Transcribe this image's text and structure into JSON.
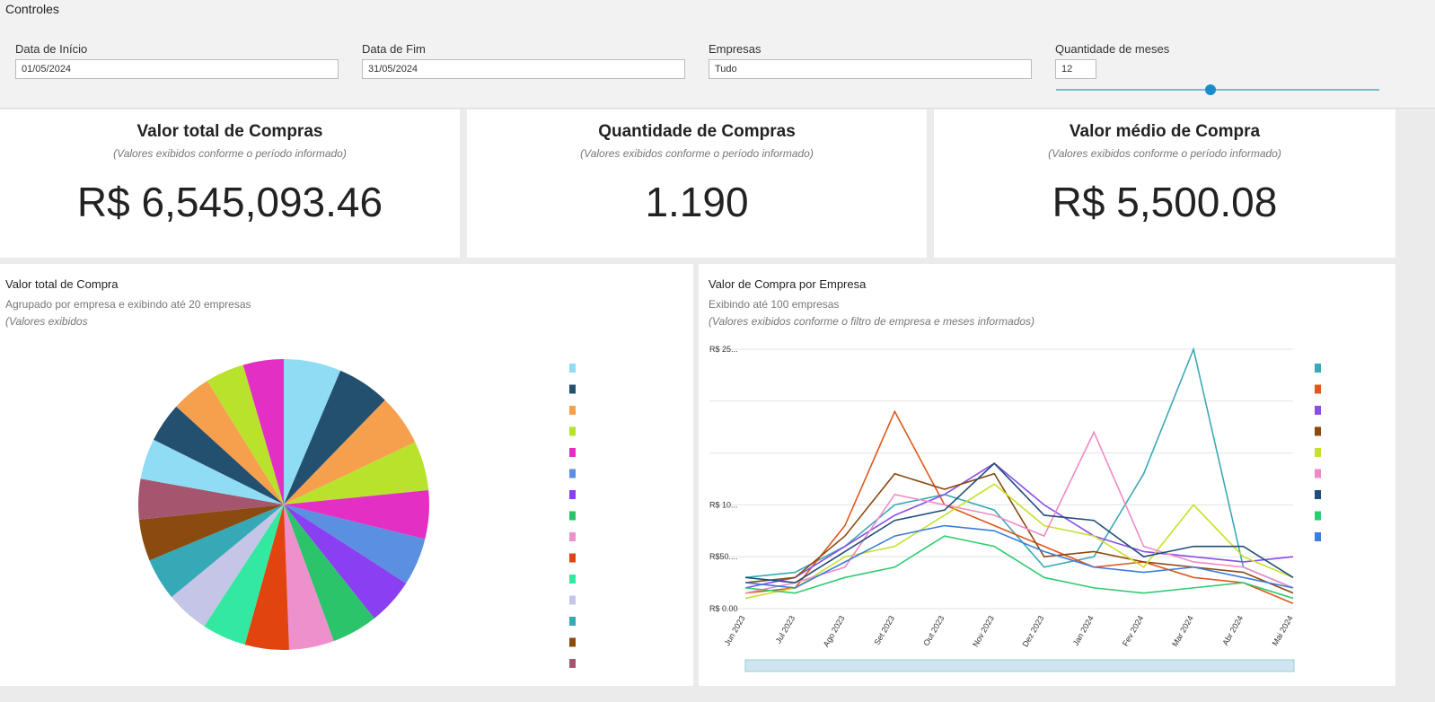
{
  "controls": {
    "title": "Controles",
    "filters": [
      {
        "label": "Data de Início",
        "value": "01/05/2024"
      },
      {
        "label": "Data de Fim",
        "value": "31/05/2024"
      },
      {
        "label": "Empresas",
        "value": "Tudo"
      },
      {
        "label": "Quantidade de meses",
        "value": "12"
      }
    ]
  },
  "kpis": [
    {
      "title": "Valor total de Compras",
      "subtitle": "(Valores exibidos conforme o período informado)",
      "value": "R$ 6,545,093.46"
    },
    {
      "title": "Quantidade de Compras",
      "subtitle": "(Valores exibidos conforme o período informado)",
      "value": "1.190"
    },
    {
      "title": "Valor médio de Compra",
      "subtitle": "(Valores exibidos conforme o período informado)",
      "value": "R$ 5,500.08"
    }
  ],
  "chart_data": [
    {
      "type": "pie",
      "title": "Valor total de Compra",
      "subtitle": "Agrupado por empresa e exibindo até 20 empresas",
      "note": "(Valores exibidos",
      "values": [
        6.5,
        6,
        5.8,
        5.6,
        5.5,
        5.4,
        5.3,
        5.2,
        5.1,
        5,
        5,
        4.9,
        4.8,
        4.7,
        4.6,
        4.6,
        4.5,
        4.5,
        4.4,
        4.6
      ],
      "colors": [
        "#8fdcf5",
        "#245070",
        "#f6a04d",
        "#b9e22c",
        "#e42fc4",
        "#5b8fe0",
        "#8b3ff2",
        "#2bc46b",
        "#ee90cc",
        "#e2440f",
        "#33e8a0",
        "#c5c5e8",
        "#35a9b5",
        "#8a4a10",
        "#a6556e",
        "#8fdcf5",
        "#245070",
        "#f6a04d",
        "#b9e22c",
        "#e42fc4"
      ]
    },
    {
      "type": "line",
      "title": "Valor de Compra por Empresa",
      "subtitle": "Exibindo até 100 empresas",
      "note": "(Valores exibidos conforme o filtro de empresa e meses informados)",
      "categories": [
        "Jun 2023",
        "Jul 2023",
        "Ago 2023",
        "Set 2023",
        "Out 2023",
        "Nov 2023",
        "Dez 2023",
        "Jan 2024",
        "Fev 2024",
        "Mar 2024",
        "Abr 2024",
        "Mai 2024"
      ],
      "ylim": [
        0,
        250000
      ],
      "yticks": [
        {
          "value": 0,
          "label": "R$ 0.00"
        },
        {
          "value": 50000,
          "label": "R$50...."
        },
        {
          "value": 100000,
          "label": "R$ 10..."
        },
        150000,
        200000,
        {
          "value": 250000,
          "label": "R$ 25..."
        }
      ],
      "grid": true,
      "series": [
        {
          "color": "#3aa9b5",
          "values": [
            30000,
            35000,
            60000,
            100000,
            110000,
            95000,
            40000,
            50000,
            130000,
            250000,
            40000,
            20000
          ]
        },
        {
          "color": "#e0561b",
          "values": [
            15000,
            20000,
            80000,
            190000,
            100000,
            80000,
            60000,
            40000,
            45000,
            30000,
            25000,
            5000
          ]
        },
        {
          "color": "#8a4de8",
          "values": [
            20000,
            30000,
            60000,
            90000,
            110000,
            140000,
            100000,
            70000,
            55000,
            50000,
            45000,
            50000
          ]
        },
        {
          "color": "#8b4a10",
          "values": [
            25000,
            30000,
            70000,
            130000,
            115000,
            130000,
            50000,
            55000,
            45000,
            40000,
            35000,
            15000
          ]
        },
        {
          "color": "#c8e02a",
          "values": [
            10000,
            20000,
            50000,
            60000,
            90000,
            120000,
            80000,
            70000,
            40000,
            100000,
            50000,
            30000
          ]
        },
        {
          "color": "#f08ac6",
          "values": [
            15000,
            25000,
            40000,
            110000,
            100000,
            90000,
            70000,
            170000,
            60000,
            45000,
            40000,
            20000
          ]
        },
        {
          "color": "#1f4e79",
          "values": [
            30000,
            25000,
            55000,
            85000,
            95000,
            140000,
            90000,
            85000,
            50000,
            60000,
            60000,
            30000
          ]
        },
        {
          "color": "#2ecc71",
          "values": [
            20000,
            15000,
            30000,
            40000,
            70000,
            60000,
            30000,
            20000,
            15000,
            20000,
            25000,
            10000
          ]
        },
        {
          "color": "#3b7ddd",
          "values": [
            25000,
            20000,
            45000,
            70000,
            80000,
            75000,
            55000,
            40000,
            35000,
            40000,
            30000,
            20000
          ]
        }
      ]
    }
  ]
}
